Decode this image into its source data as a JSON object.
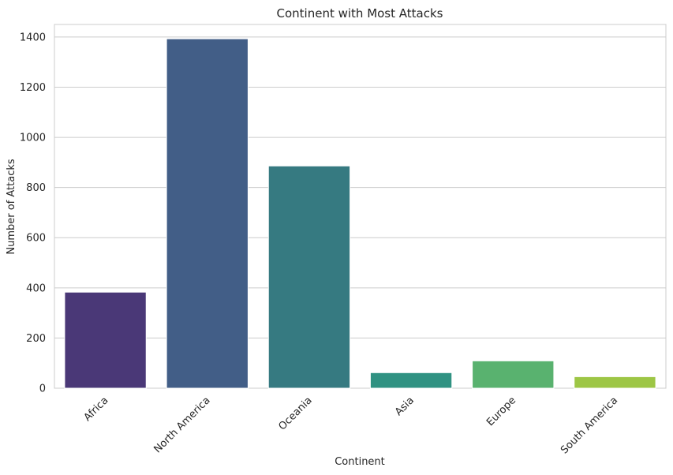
{
  "chart_data": {
    "type": "bar",
    "title": "Continent with Most Attacks",
    "xlabel": "Continent",
    "ylabel": "Number of Attacks",
    "categories": [
      "Africa",
      "North America",
      "Oceania",
      "Asia",
      "Europe",
      "South America"
    ],
    "values": [
      383,
      1393,
      886,
      62,
      109,
      46
    ],
    "colors": [
      "#4a3877",
      "#425e87",
      "#367a81",
      "#309282",
      "#59b26f",
      "#9dc645"
    ],
    "ylim": [
      0,
      1450
    ],
    "yticks": [
      0,
      200,
      400,
      600,
      800,
      1000,
      1200,
      1400
    ],
    "grid": true,
    "legend": "none"
  }
}
